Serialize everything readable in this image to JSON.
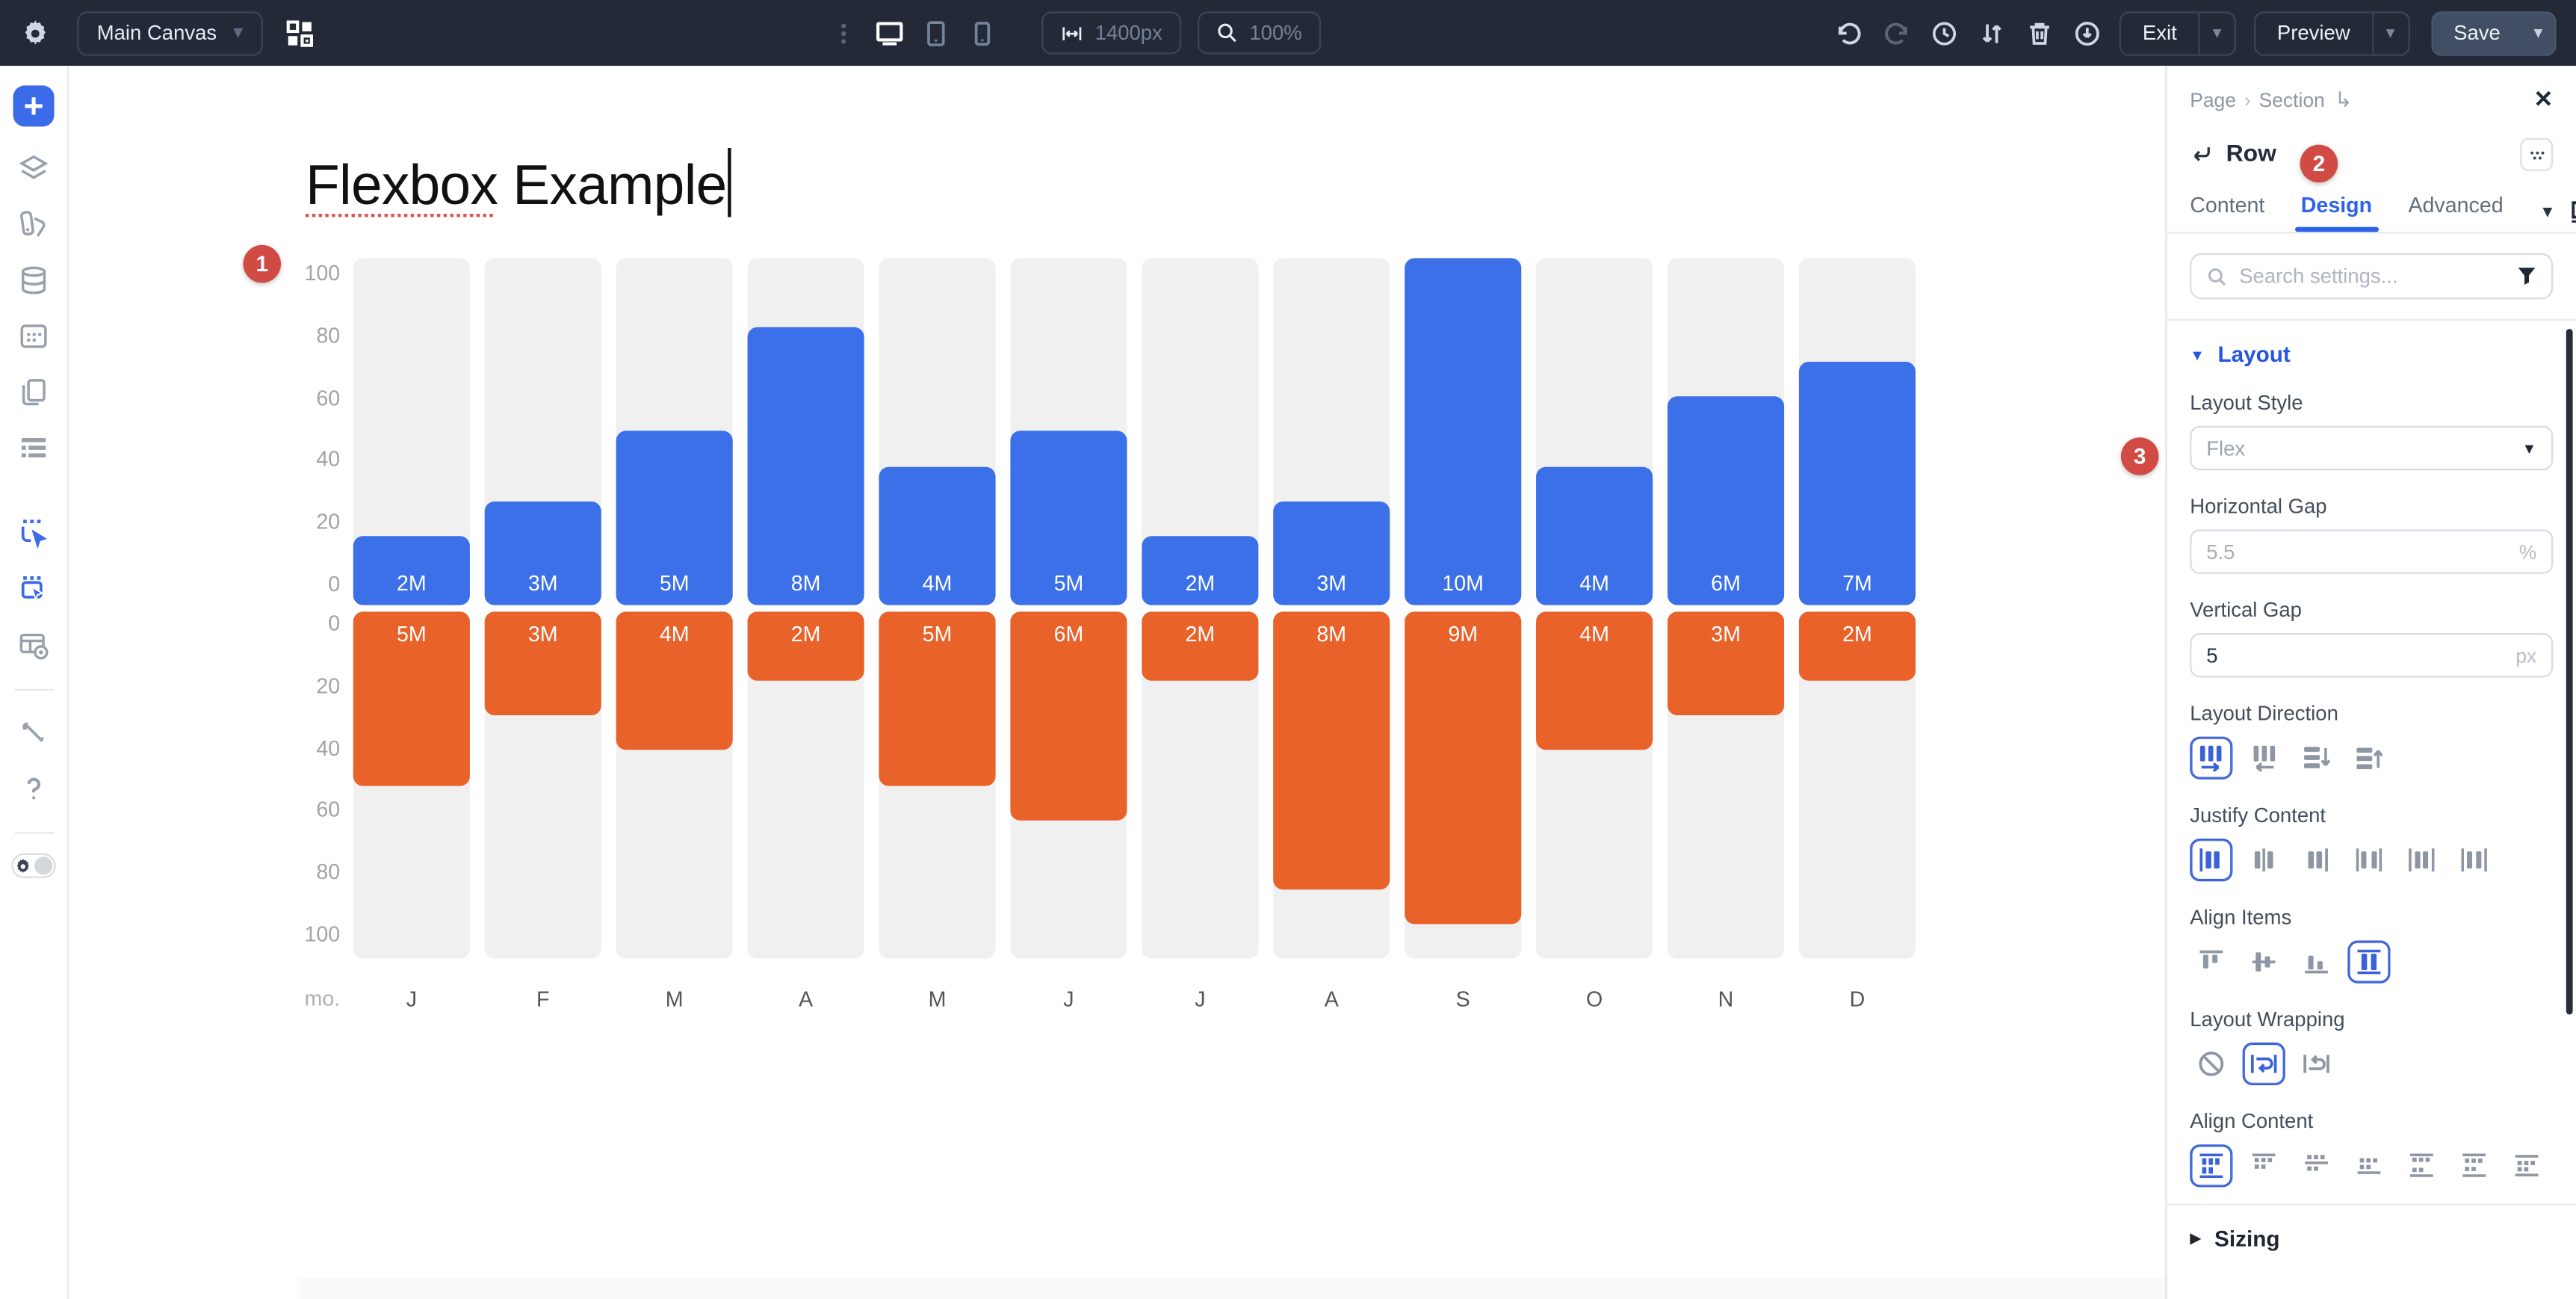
{
  "topbar": {
    "canvas_selector": "Main Canvas",
    "width_value": "1400px",
    "zoom_value": "100%",
    "exit_label": "Exit",
    "preview_label": "Preview",
    "save_label": "Save"
  },
  "left_toolbar": {
    "items": [
      {
        "icon": "add-element",
        "style": "add"
      },
      {
        "icon": "layers"
      },
      {
        "icon": "design-swatches"
      },
      {
        "icon": "database"
      },
      {
        "icon": "board"
      },
      {
        "icon": "copy-pages"
      },
      {
        "icon": "navigator-list"
      },
      {
        "spacer": true
      },
      {
        "icon": "insert-before",
        "style": "blue"
      },
      {
        "icon": "insert-inside",
        "style": "blue"
      },
      {
        "icon": "window-preview"
      },
      {
        "divider": true
      },
      {
        "icon": "tools"
      },
      {
        "icon": "help"
      },
      {
        "divider": true
      },
      {
        "icon": "settings-toggle",
        "style": "toggle"
      }
    ]
  },
  "canvas": {
    "title_underlined": "Flexbox",
    "title_rest": " Example",
    "badge_1": "1"
  },
  "chart_data": {
    "type": "bar",
    "title": "Flexbox Example",
    "orientation": "diverging-vertical-flexbox",
    "categories": [
      "J",
      "F",
      "M",
      "A",
      "M",
      "J",
      "J",
      "A",
      "S",
      "O",
      "N",
      "D"
    ],
    "axis_unit_label": "mo.",
    "y_ticks_top": [
      "100",
      "80",
      "60",
      "40",
      "20",
      "0"
    ],
    "y_ticks_bottom": [
      "0",
      "20",
      "40",
      "60",
      "80",
      "100"
    ],
    "ylim": [
      0,
      100
    ],
    "value_scale_millions_per_unit": 0.1,
    "series": [
      {
        "name": "top",
        "color": "#3b70e8",
        "values": [
          20,
          30,
          50,
          80,
          40,
          50,
          20,
          30,
          100,
          40,
          60,
          70
        ],
        "labels": [
          "2M",
          "3M",
          "5M",
          "8M",
          "4M",
          "5M",
          "2M",
          "3M",
          "10M",
          "4M",
          "6M",
          "7M"
        ]
      },
      {
        "name": "bottom",
        "color": "#e8622a",
        "values": [
          50,
          30,
          40,
          20,
          50,
          60,
          20,
          80,
          90,
          40,
          30,
          20
        ],
        "labels": [
          "5M",
          "3M",
          "4M",
          "2M",
          "5M",
          "6M",
          "2M",
          "8M",
          "9M",
          "4M",
          "3M",
          "2M"
        ]
      }
    ],
    "grid": false,
    "legend": false
  },
  "panel": {
    "breadcrumb": [
      "Page",
      "Section"
    ],
    "element_name": "Row",
    "badge_2": "2",
    "badge_3": "3",
    "tabs": [
      {
        "label": "Content",
        "active": false
      },
      {
        "label": "Design",
        "active": true
      },
      {
        "label": "Advanced",
        "active": false
      }
    ],
    "search_placeholder": "Search settings...",
    "layout_section": {
      "title": "Layout",
      "layout_style": {
        "label": "Layout Style",
        "value": "Flex"
      },
      "horizontal_gap": {
        "label": "Horizontal Gap",
        "value": "5.5",
        "unit": "%",
        "is_placeholder": true
      },
      "vertical_gap": {
        "label": "Vertical Gap",
        "value": "5",
        "unit": "px",
        "is_placeholder": false
      },
      "groups": [
        {
          "key": "layout-direction",
          "label": "Layout Direction",
          "options": [
            {
              "name": "row",
              "selected": true
            },
            {
              "name": "row-reverse",
              "selected": false
            },
            {
              "name": "column",
              "selected": false
            },
            {
              "name": "column-reverse",
              "selected": false
            }
          ]
        },
        {
          "key": "justify-content",
          "label": "Justify Content",
          "options": [
            {
              "name": "flex-start",
              "selected": true
            },
            {
              "name": "center",
              "selected": false
            },
            {
              "name": "flex-end",
              "selected": false
            },
            {
              "name": "space-between",
              "selected": false
            },
            {
              "name": "space-around",
              "selected": false
            },
            {
              "name": "space-evenly",
              "selected": false
            }
          ]
        },
        {
          "key": "align-items",
          "label": "Align Items",
          "options": [
            {
              "name": "flex-start",
              "selected": false
            },
            {
              "name": "center",
              "selected": false
            },
            {
              "name": "flex-end",
              "selected": false
            },
            {
              "name": "stretch",
              "selected": true
            }
          ]
        },
        {
          "key": "layout-wrapping",
          "label": "Layout Wrapping",
          "options": [
            {
              "name": "nowrap",
              "selected": false
            },
            {
              "name": "wrap",
              "selected": true
            },
            {
              "name": "wrap-reverse",
              "selected": false
            }
          ]
        },
        {
          "key": "align-content",
          "label": "Align Content",
          "options": [
            {
              "name": "stretch",
              "selected": true
            },
            {
              "name": "flex-start",
              "selected": false
            },
            {
              "name": "center",
              "selected": false
            },
            {
              "name": "flex-end",
              "selected": false
            },
            {
              "name": "space-between",
              "selected": false
            },
            {
              "name": "space-around",
              "selected": false
            },
            {
              "name": "space-evenly",
              "selected": false
            }
          ]
        }
      ]
    },
    "sizing_section": {
      "title": "Sizing"
    }
  }
}
